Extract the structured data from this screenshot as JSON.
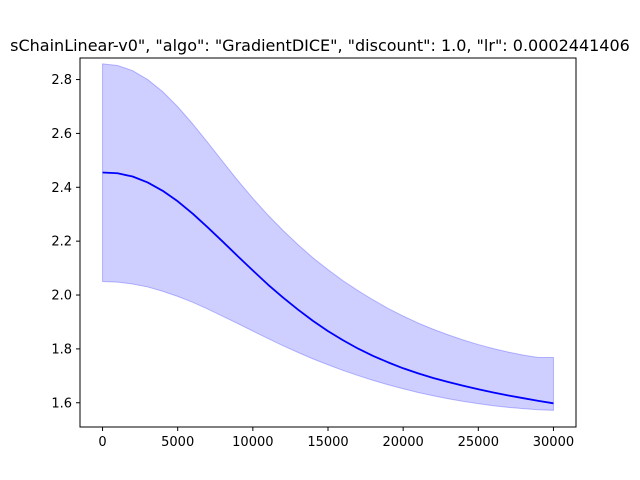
{
  "chart_data": {
    "type": "line",
    "title": "sChainLinear-v0\", \"algo\": \"GradientDICE\", \"discount\": 1.0, \"lr\": 0.0002441406",
    "xlabel": "",
    "ylabel": "",
    "xlim": [
      -1500,
      31500
    ],
    "ylim": [
      1.51,
      2.88
    ],
    "x_ticks": [
      0,
      5000,
      10000,
      15000,
      20000,
      25000,
      30000
    ],
    "y_ticks": [
      1.6,
      1.8,
      2.0,
      2.2,
      2.4,
      2.6,
      2.8
    ],
    "grid": false,
    "legend": "none",
    "series": [
      {
        "color": "#0000ff",
        "band_color": "#0000ff",
        "band_opacity": 0.19,
        "x": [
          0,
          1000,
          2000,
          3000,
          4000,
          5000,
          6000,
          7000,
          8000,
          9000,
          10000,
          11000,
          12000,
          13000,
          14000,
          15000,
          16000,
          17000,
          18000,
          19000,
          20000,
          21000,
          22000,
          23000,
          24000,
          25000,
          26000,
          27000,
          28000,
          29000,
          30000
        ],
        "mean": [
          2.455,
          2.452,
          2.44,
          2.418,
          2.387,
          2.348,
          2.302,
          2.251,
          2.198,
          2.144,
          2.091,
          2.039,
          1.991,
          1.946,
          1.904,
          1.866,
          1.832,
          1.801,
          1.774,
          1.75,
          1.728,
          1.709,
          1.692,
          1.677,
          1.663,
          1.65,
          1.638,
          1.627,
          1.617,
          1.607,
          1.598
        ],
        "upper": [
          2.858,
          2.852,
          2.833,
          2.8,
          2.755,
          2.699,
          2.635,
          2.566,
          2.495,
          2.425,
          2.359,
          2.297,
          2.24,
          2.187,
          2.138,
          2.094,
          2.053,
          2.016,
          1.982,
          1.95,
          1.922,
          1.896,
          1.873,
          1.852,
          1.833,
          1.816,
          1.801,
          1.788,
          1.777,
          1.768,
          1.768
        ],
        "lower": [
          2.05,
          2.048,
          2.041,
          2.03,
          2.014,
          1.995,
          1.973,
          1.948,
          1.921,
          1.894,
          1.866,
          1.839,
          1.812,
          1.787,
          1.763,
          1.741,
          1.72,
          1.701,
          1.683,
          1.667,
          1.652,
          1.638,
          1.626,
          1.615,
          1.605,
          1.597,
          1.589,
          1.583,
          1.578,
          1.574,
          1.572
        ]
      }
    ]
  }
}
